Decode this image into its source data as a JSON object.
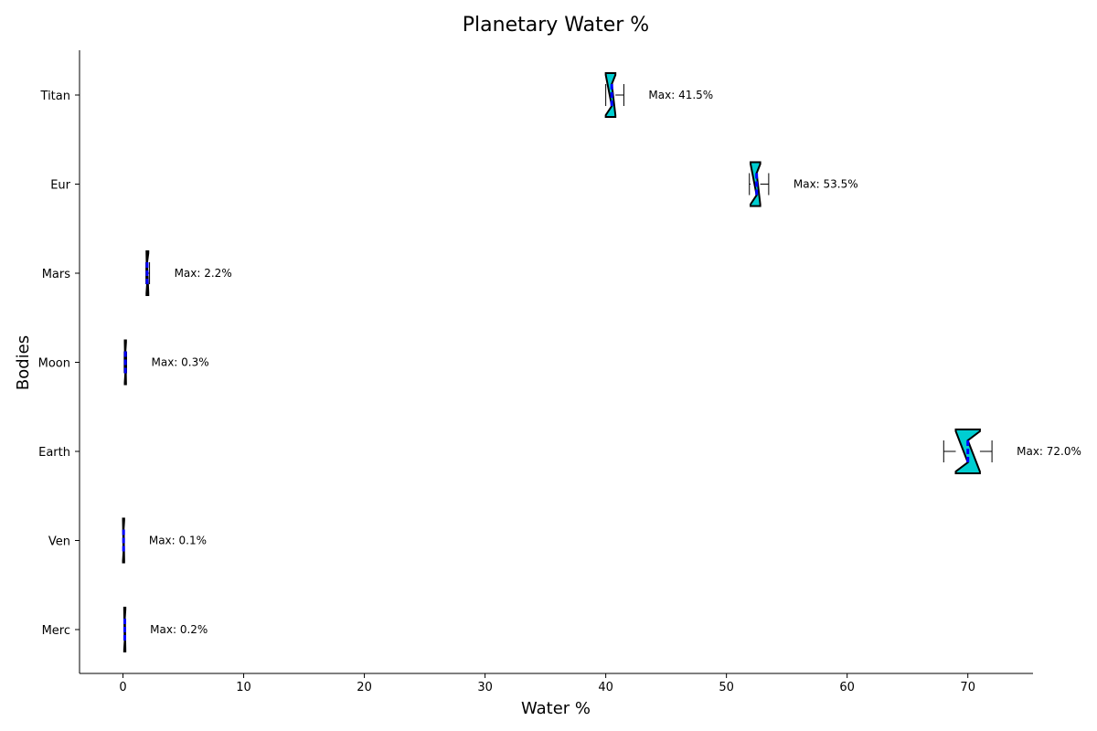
{
  "chart_data": {
    "type": "boxplot",
    "orientation": "horizontal",
    "notched": true,
    "title": "Planetary Water %",
    "xlabel": "Water %",
    "ylabel": "Bodies",
    "xlim": [
      -3.6,
      75.4
    ],
    "xticks": [
      0,
      10,
      20,
      30,
      40,
      50,
      60,
      70
    ],
    "grid": false,
    "categories": [
      "Merc",
      "Ven",
      "Earth",
      "Moon",
      "Mars",
      "Eur",
      "Titan"
    ],
    "boxes": [
      {
        "name": "Merc",
        "whislo": 0.1,
        "q1": 0.1,
        "med": 0.15,
        "q3": 0.2,
        "whishi": 0.2,
        "max_label": "Max: 0.2%"
      },
      {
        "name": "Ven",
        "whislo": 0.0,
        "q1": 0.0,
        "med": 0.05,
        "q3": 0.1,
        "whishi": 0.1,
        "max_label": "Max: 0.1%"
      },
      {
        "name": "Earth",
        "whislo": 68.0,
        "q1": 69.0,
        "med": 70.0,
        "q3": 71.0,
        "whishi": 72.0,
        "max_label": "Max: 72.0%"
      },
      {
        "name": "Moon",
        "whislo": 0.1,
        "q1": 0.15,
        "med": 0.2,
        "q3": 0.25,
        "whishi": 0.3,
        "max_label": "Max: 0.3%"
      },
      {
        "name": "Mars",
        "whislo": 1.9,
        "q1": 1.95,
        "med": 2.0,
        "q3": 2.1,
        "whishi": 2.2,
        "max_label": "Max: 2.2%"
      },
      {
        "name": "Eur",
        "whislo": 51.9,
        "q1": 52.0,
        "med": 52.5,
        "q3": 52.8,
        "whishi": 53.5,
        "max_label": "Max: 53.5%"
      },
      {
        "name": "Titan",
        "whislo": 40.0,
        "q1": 40.0,
        "med": 40.5,
        "q3": 40.8,
        "whishi": 41.5,
        "max_label": "Max: 41.5%"
      }
    ],
    "colors": {
      "box_fill": "#00CED1",
      "box_edge": "#000000",
      "median": "#0000FF",
      "whisker": "#000000"
    }
  }
}
